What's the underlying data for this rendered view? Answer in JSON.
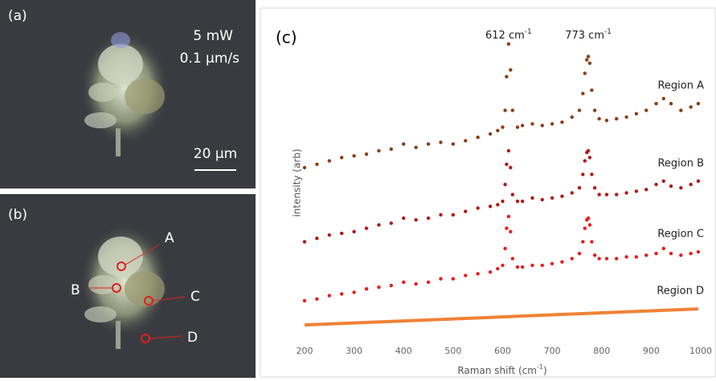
{
  "panels": {
    "a": {
      "label": "(a)",
      "power": "5 mW",
      "speed": "0.1 µm/s",
      "scale": "20 µm"
    },
    "b": {
      "label": "(b)",
      "points": [
        "A",
        "B",
        "C",
        "D"
      ]
    }
  },
  "chart_data": {
    "type": "scatter",
    "panel_label": "(c)",
    "annotations": [
      {
        "text": "612 cm",
        "superscript": "-1"
      },
      {
        "text": "773 cm",
        "superscript": "-1"
      }
    ],
    "x_label": [
      "Raman shift (cm",
      "-1",
      ")"
    ],
    "y_label": "intensity (arb)",
    "xlim": [
      200,
      1000
    ],
    "xticks": [
      200,
      300,
      400,
      500,
      600,
      700,
      800,
      900,
      1000
    ],
    "ylim": [
      0,
      100
    ],
    "x": [
      200,
      225,
      250,
      275,
      300,
      325,
      350,
      375,
      400,
      425,
      450,
      475,
      500,
      525,
      550,
      575,
      590,
      600,
      605,
      608,
      612,
      616,
      620,
      630,
      640,
      660,
      680,
      700,
      720,
      740,
      755,
      762,
      766,
      770,
      773,
      776,
      780,
      786,
      795,
      810,
      830,
      850,
      870,
      890,
      910,
      925,
      940,
      960,
      980,
      995
    ],
    "series": [
      {
        "name": "Region A",
        "color": "#8b3e12",
        "style": "dots",
        "values": [
          55,
          56,
          57,
          58,
          58.5,
          59,
          60,
          60.5,
          62,
          61,
          62,
          62.5,
          62,
          63,
          64,
          65,
          66,
          67,
          72,
          82,
          91.7,
          84,
          72,
          67,
          67.5,
          68,
          67.5,
          68,
          68.5,
          70,
          72,
          77,
          83,
          87,
          88,
          86,
          78,
          72,
          69.5,
          69,
          69.5,
          70,
          71,
          72,
          74,
          75.5,
          74,
          72,
          73,
          74
        ]
      },
      {
        "name": "Region B",
        "color": "#b01818",
        "style": "dots",
        "values": [
          33,
          34,
          35,
          35.5,
          36,
          37,
          38,
          38.5,
          40,
          39.5,
          40,
          41,
          41,
          42,
          43,
          43.5,
          44,
          45,
          50,
          56,
          60,
          55,
          47,
          45,
          45,
          46,
          45.5,
          46,
          46.5,
          47.5,
          49,
          53,
          57,
          59.5,
          60,
          58,
          53,
          49,
          47,
          47,
          47,
          47.5,
          48,
          48.5,
          50,
          51,
          49.5,
          49,
          50,
          51
        ]
      },
      {
        "name": "Region C",
        "color": "#e81c1c",
        "style": "dots",
        "values": [
          15.5,
          16,
          17,
          17.5,
          18,
          19,
          19.5,
          20,
          21,
          20.5,
          21,
          22,
          22,
          23,
          23.5,
          24,
          25,
          26,
          31,
          37,
          40.5,
          36,
          28,
          25.5,
          25.5,
          26,
          26,
          26.5,
          27,
          28,
          29.5,
          33,
          37,
          39.5,
          40,
          38,
          33,
          29,
          28,
          28,
          28,
          28.5,
          28.5,
          29,
          29.5,
          31,
          29.5,
          29,
          29.5,
          30
        ]
      },
      {
        "name": "Region D",
        "color": "#ef8236",
        "style": "line",
        "values": [
          8.3,
          8.45,
          8.6,
          8.75,
          8.9,
          9.05,
          9.2,
          9.35,
          9.5,
          9.65,
          9.8,
          9.95,
          10.1,
          10.25,
          10.4,
          10.55,
          10.64,
          10.7,
          10.73,
          10.75,
          10.77,
          10.8,
          10.82,
          10.88,
          10.94,
          11.06,
          11.18,
          11.3,
          11.42,
          11.54,
          11.63,
          11.67,
          11.7,
          11.72,
          11.74,
          11.76,
          11.78,
          11.82,
          11.87,
          11.96,
          12.08,
          12.2,
          12.32,
          12.44,
          12.56,
          12.65,
          12.74,
          12.86,
          12.98,
          13.07
        ]
      }
    ]
  }
}
